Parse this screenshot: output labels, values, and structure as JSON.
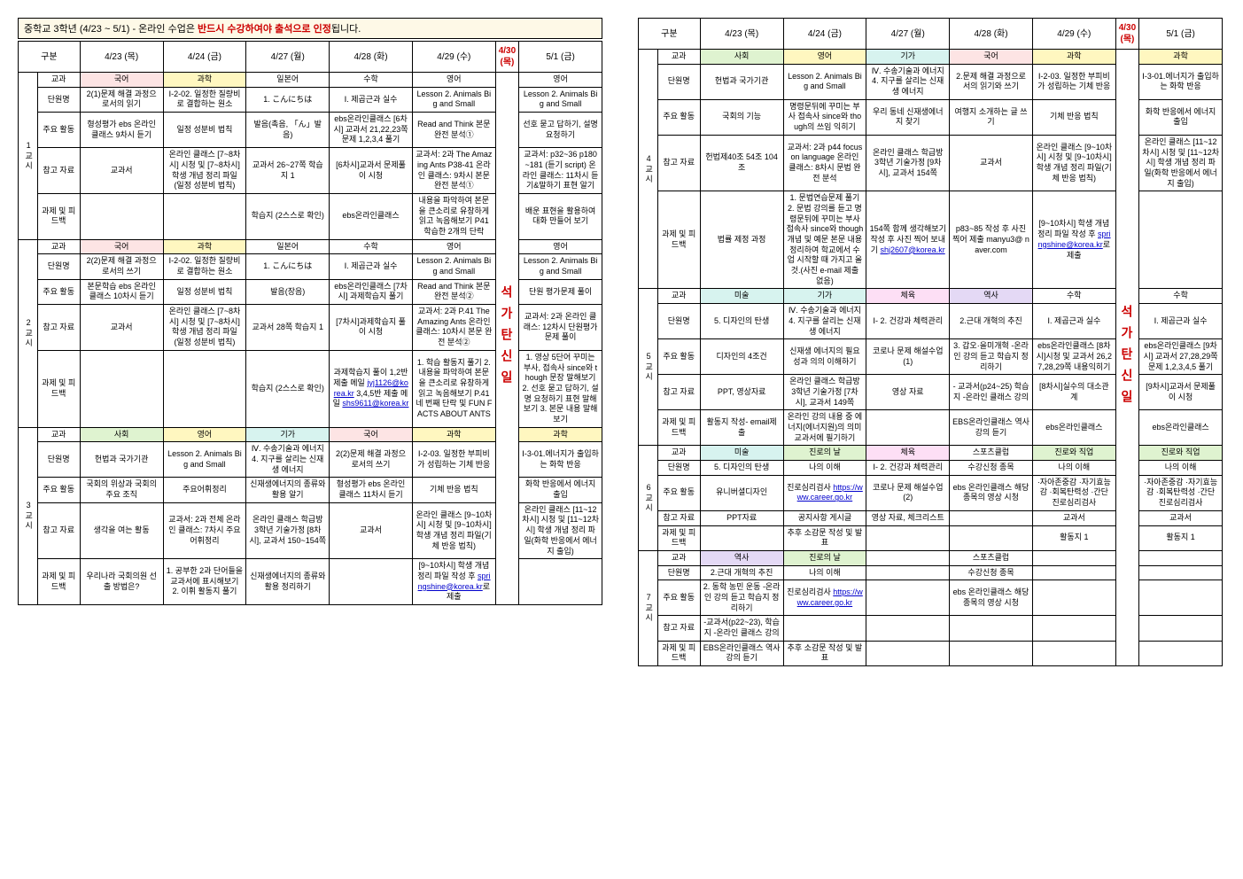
{
  "title": {
    "pre": "중학교 3학년 (4/23 ~ 5/1)  -  온라인 수업은 ",
    "red": "반드시 수강하여야 출석으로 인정",
    "post": "됩니다."
  },
  "dates": {
    "d1": "4/23 (목)",
    "d2": "4/24 (금)",
    "d3": "4/27 (월)",
    "d4": "4/28 (화)",
    "d5": "4/29 (수)",
    "d6": "4/30 (목)",
    "d7": "5/1 (금)"
  },
  "rowlbl": {
    "gubun": "구분",
    "gyogwa": "교과",
    "unit": "단원명",
    "act": "주요 활동",
    "ref": "참고 자료",
    "hw": "과제 및 피드백"
  },
  "holiday_text": "석가탄신일",
  "p1": {
    "side": "1교시",
    "subj": {
      "d1": "국어",
      "d2": "과학",
      "d3": "일본어",
      "d4": "수학",
      "d5": "영어",
      "d7": "영어"
    },
    "unit": {
      "d1": "2(1)문제 해결 과정으로서의 읽기",
      "d2": "Ⅰ-2-02. 일정한 질량비로 결합하는 원소",
      "d3": "1. こんにちは",
      "d4": "Ⅰ. 제곱근과 실수",
      "d5": "Lesson 2. Animals Big and Small",
      "d7": "Lesson 2. Animals Big and Small"
    },
    "act": {
      "d1": "형성평가 ebs 온라인 클래스 9차시 듣기",
      "d2": "일정 성분비 법칙",
      "d3": "발음(촉음, 「ん」발음)",
      "d4": "ebs온라인클래스 [6차시] 교과서 21,22,23쪽 문제 1,2,3,4 풀기",
      "d5": "Read and Think 본문 완전 분석①",
      "d7": "선호 묻고 답하기, 설명 요청하기"
    },
    "ref": {
      "d1": "교과서",
      "d2": "온라인 클래스 [7~8차시] 시청 및 [7~8차시] 학생 개념 정리 파일 (일정 성분비 법칙)",
      "d3": "교과서 26~27쪽 학습지 1",
      "d4": "[6차시]교과서 문제풀이 시청",
      "d5": "교과서: 2과 The Amazing Ants P38-41 온라인 클래스: 9차시 본문 완전 분석①",
      "d7": "교과서: p32~36 p180 ~181 (듣기 script) 온라인 클래스: 11차시 듣기&말하기 표현 알기"
    },
    "hw": {
      "d1": "",
      "d2": "",
      "d3": "학습지 (2스스로 확인)",
      "d4": "ebs온라인클래스",
      "d5": "내용을 파악하여 본문을 큰소리로 유창하게 읽고 녹음해보기 P41 학습한 2개의 단락",
      "d7": "배운 표현을 활용하여 대화 만들어 보기"
    }
  },
  "p2": {
    "side": "2교시",
    "subj": {
      "d1": "국어",
      "d2": "과학",
      "d3": "일본어",
      "d4": "수학",
      "d5": "영어",
      "d7": "영어"
    },
    "unit": {
      "d1": "2(2)문제 해결 과정으로서의 쓰기",
      "d2": "Ⅰ-2-02. 일정한 질량비로 결합하는 원소",
      "d3": "1. こんにちは",
      "d4": "Ⅰ. 제곱근과 실수",
      "d5": "Lesson 2. Animals Big and Small",
      "d7": "Lesson 2. Animals Big and Small"
    },
    "act": {
      "d1": "본문학습 ebs 온라인 클래스 10차시 듣기",
      "d2": "일정 성분비 법칙",
      "d3": "발음(장음)",
      "d4": "ebs온라인클래스 [7차시] 과제학습지 풀기",
      "d5": "Read and Think 본문 완전 분석②",
      "d7": "단원 평가문제 풀이"
    },
    "ref": {
      "d1": "교과서",
      "d2": "온라인 클래스 [7~8차시] 시청 및 [7~8차시] 학생 개념 정리 파일 (일정 성분비 법칙)",
      "d3": "교과서 28쪽 학습지 1",
      "d4": "[7차시]과제학습지 풀이 시청",
      "d5": "교과서: 2과 P.41 The Amazing Ants 온라인 클래스: 10차시 본문 완전 분석②",
      "d7": "교과서: 2과 온라인 클래스: 12차시 단원평가문제 풀이"
    },
    "hw": {
      "d1": "",
      "d2": "",
      "d3": "학습지 (2스스로 확인)",
      "d4": "과제학습지 풀이 1,2반 제출 메일 jyj1126@korea.kr 3,4,5반 제출 메일 shs9611@korea.kr",
      "d5": "1. 학습 활동지 풀기 2. 내용을 파악하여 본문을 큰소리로 유창하게 읽고 녹음해보기 P.41 네 번째 단락 및 FUN FACTS ABOUT ANTS",
      "d7": "1. 영상 5단어 꾸미는 부사, 접속사 since와 though 문장 말해보기 2. 선호 묻고 답하기, 설명 요청하기 표현 말해보기 3. 본문 내용 말해보기"
    }
  },
  "p3": {
    "side": "3교시",
    "subj": {
      "d1": "사회",
      "d2": "영어",
      "d3": "기가",
      "d4": "국어",
      "d5": "과학",
      "d7": "과학"
    },
    "unit": {
      "d1": "헌법과 국가기관",
      "d2": "Lesson 2. Animals Big and Small",
      "d3": "Ⅳ. 수송기술과 에너지 4. 지구를 살리는 신재생 에너지",
      "d4": "2(2)문제 해결 과정으로서의 쓰기",
      "d5": "Ⅰ-2-03. 일정한 부피비가 성립하는 기체 반응",
      "d7": "Ⅰ-3-01.에너지가 출입하는 화학 반응"
    },
    "act": {
      "d1": "국회의 위상과 국회의 주요 조직",
      "d2": "주요어휘정리",
      "d3": "신재생에너지의 종류와 활용 알기",
      "d4": "형성평가 ebs 온라인 클래스 11차시 듣기",
      "d5": "기체 반응 법칙",
      "d7": "화학 반응에서 에너지 출입"
    },
    "ref": {
      "d1": "생각을 여는 활동",
      "d2": "교과서: 2과 전체 온라인 클래스: 7차시 주요어휘정리",
      "d3": "온라인 클래스 학급방 3학년 기술가정 [8차시], 교과서 150~154쪽",
      "d4": "교과서",
      "d5": "온라인 클래스 [9~10차시] 시청 및 [9~10차시] 학생 개념 정리 파일(기체 반응 법칙)",
      "d7": "온라인 클래스 [11~12차시] 시청 및 [11~12차시] 학생 개념 정리 파일(화학 반응에서 에너지 출입)"
    },
    "hw": {
      "d1": "우리나라 국회의원 선출 방법은?",
      "d2": "1. 공부한 2과 단어들을 교과서에 표시해보기 2. 이휘 활동지 풀기",
      "d3": "신재생에너지의 종류와 활용 정리하기",
      "d4": "",
      "d5": "[9~10차시] 학생 개념 정리 파일 작성 후 springshine@korea.kr로 제출",
      "d7": ""
    }
  },
  "p4": {
    "side": "4교시",
    "subj": {
      "d1": "사회",
      "d2": "영어",
      "d3": "기가",
      "d4": "국어",
      "d5": "과학",
      "d7": "과학"
    },
    "unit": {
      "d1": "헌법과 국가기관",
      "d2": "Lesson 2. Animals Big and Small",
      "d3": "Ⅳ. 수송기술과 에너지 4. 지구를 살리는 신재생 에너지",
      "d4": "2.문제 해결 과정으로서의 읽기와 쓰기",
      "d5": "Ⅰ-2-03. 일정한 부피비가 성립하는 기체 반응",
      "d7": "Ⅰ-3-01.에너지가 출입하는 화학 반응"
    },
    "act": {
      "d1": "국회의 기능",
      "d2": "명령문뒤에 꾸미는 부사 접속사 since와 though의 쓰임 익히기",
      "d3": "우리 동네 신재생에너지 찾기",
      "d4": "여행지 소개하는 글 쓰기",
      "d5": "기체 반응 법칙",
      "d7": "화학 반응에서 에너지 출입"
    },
    "ref": {
      "d1": "헌법제40조 54조 104조",
      "d2": "교과서: 2과 p44 focus on language 온라인 클래스: 8차시 문법 완전 분석",
      "d3": "온라인 클래스 학급방 3학년 기술가정 [9차시], 교과서 154쪽",
      "d4": "교과서",
      "d5": "온라인 클래스 [9~10차시] 시청 및 [9~10차시] 학생 개념 정리 파일(기체 반응 법칙)",
      "d7": "온라인 클래스 [11~12차시] 시청 및 [11~12차시] 학생 개념 정리 파일(화학 반응에서 에너지 출입)"
    },
    "hw": {
      "d1": "법률 제정 과정",
      "d2": "1. 문법연습문제 풀기 2. 문법 강의를 듣고 명령문뒤에 꾸미는 부사 접속사 since와 though 개념 및 예문 본문 내용 정리하여 학교에서 수업 시작할 때 가지고 올 것.(사진 e-mail 제출 없음)",
      "d3": "154쪽 함께 생각해보기 작성 후 사진 찍어 보내기 shj2607@korea.kr",
      "d4": "p83~85 작성 후 사진찍어 제출 manyu3@ naver.com",
      "d5": "[9~10차시] 학생 개념 정리 파일 작성 후 springshine@korea.kr로 제출",
      "d7": ""
    }
  },
  "p5": {
    "side": "5교시",
    "subj": {
      "d1": "미술",
      "d2": "기가",
      "d3": "체육",
      "d4": "역사",
      "d5": "수학",
      "d7": "수학"
    },
    "unit": {
      "d1": "5. 디자인의 탄생",
      "d2": "Ⅳ. 수송기술과 에너지 4. 지구를 살리는 신재생 에너지",
      "d3": "Ⅰ- 2. 건강과 체력관리",
      "d4": "2.근대 개혁의 추진",
      "d5": "Ⅰ. 제곱근과 실수",
      "d7": "Ⅰ. 제곱근과 실수"
    },
    "act": {
      "d1": "디자인의 4조건",
      "d2": "신재생 에너지의 필요성과 의의 이해하기",
      "d3": "코로나 문제 해설수업(1)",
      "d4": "3. 갑오·을미개혁 -온라인 강의 듣고 학습지 정리하기",
      "d5": "ebs온라인클래스 [8차시]시청 및 교과서 26,27,28,29쪽 내용익히기",
      "d7": "ebs온라인클래스 [9차시] 교과서 27,28,29쪽 문제 1,2,3,4,5 풀기"
    },
    "ref": {
      "d1": "PPT, 영상자료",
      "d2": "온라인 클래스 학급방 3학년 기술가정 [7차시], 교과서 149쪽",
      "d3": "영상 자료",
      "d4": "- 교과서(p24~25) 학습지 -온라인 클래스 강의",
      "d5": "[8차시]실수의 대소관계",
      "d7": "[9차시]교과서 문제풀이 시청"
    },
    "hw": {
      "d1": "활동지 작성- email제출",
      "d2": "온라인 강의 내용 중 에너지(에너지원)의 의미 교과서에 필기하기",
      "d3": "",
      "d4": "EBS온라인클래스 역사 강의 듣기",
      "d5": "ebs온라인클래스",
      "d7": "ebs온라인클래스"
    }
  },
  "p6": {
    "side": "6교시",
    "subj": {
      "d1": "미술",
      "d2": "진로의 날",
      "d3": "체육",
      "d4": "스포츠클럽",
      "d5": "진로와 직업",
      "d7": "진로와 직업"
    },
    "unit": {
      "d1": "5. 디자인의 탄생",
      "d2": "나의 이해",
      "d3": "Ⅰ- 2. 건강과 체력관리",
      "d4": "수강신청 종목",
      "d5": "나의 이해",
      "d7": "나의 이해"
    },
    "act": {
      "d1": "유니버셜디자인",
      "d2": "진로심리검사 https://www.career.go.kr",
      "d3": "코로나 문제 해설수업(2)",
      "d4": "ebs 온라인클래스 해당 종목의 영상 시청",
      "d5": "·자아존중감 ·자기효능감 ·회복탄력성 ·간단 진로심리검사",
      "d7": "·자아존중감 ·자기효능감 ·회복탄력성 ·간단 진로심리검사"
    },
    "ref": {
      "d1": "PPT자료",
      "d2": "공지사항 게시글",
      "d3": "영상 자료, 체크리스트",
      "d4": "",
      "d5": "교과서",
      "d7": "교과서"
    },
    "hw": {
      "d1": "",
      "d2": "추후 소감문 작성 및 발표",
      "d3": "",
      "d4": "",
      "d5": "활동지 1",
      "d7": "활동지 1"
    }
  },
  "p7": {
    "side": "7교시",
    "subj": {
      "d1": "역사",
      "d2": "진로의 날",
      "d3": "",
      "d4": "스포츠클럽",
      "d5": "",
      "d7": ""
    },
    "unit": {
      "d1": "2.근대 개혁의 추진",
      "d2": "나의 이해",
      "d3": "",
      "d4": "수강신청 종목",
      "d5": "",
      "d7": ""
    },
    "act": {
      "d1": "2. 동학 농민 운동 -온라인 강의 듣고 학습지 정리하기",
      "d2": "진로심리검사 https://www.career.go.kr",
      "d3": "",
      "d4": "ebs 온라인클래스 해당 종목의 영상 시청",
      "d5": "",
      "d7": ""
    },
    "ref": {
      "d1": "-교과서(p22~23), 학습지 -온라인 클래스 강의",
      "d2": "",
      "d3": "",
      "d4": "",
      "d5": "",
      "d7": ""
    },
    "hw": {
      "d1": "EBS온라인클래스 역사 강의 듣기",
      "d2": "추후 소감문 작성 및 발표",
      "d3": "",
      "d4": "",
      "d5": "",
      "d7": ""
    }
  },
  "colors": {
    "p1": {
      "d1": "subj-red",
      "d2": "subj-yellow",
      "d7": ""
    },
    "p2": {
      "d1": "subj-red",
      "d2": "subj-yellow"
    },
    "p3": {
      "d1": "subj-green",
      "d2": "subj-yellow",
      "d3": "subj-blue",
      "d4": "subj-red",
      "d5": "subj-yellow",
      "d7": "subj-yellow"
    },
    "p4": {
      "d1": "subj-green",
      "d2": "subj-yellow",
      "d3": "subj-blue",
      "d4": "subj-red",
      "d5": "subj-yellow",
      "d7": "subj-yellow"
    },
    "p5": {
      "d1": "subj-blue",
      "d2": "subj-blue",
      "d3": "subj-pink",
      "d4": "subj-violet",
      "d5": "",
      "d7": ""
    },
    "p6": {
      "d1": "subj-blue",
      "d2": "subj-green",
      "d3": "subj-pink",
      "d4": "",
      "d5": "subj-green",
      "d7": "subj-green"
    },
    "p7": {
      "d1": "subj-violet",
      "d2": "subj-green"
    }
  }
}
